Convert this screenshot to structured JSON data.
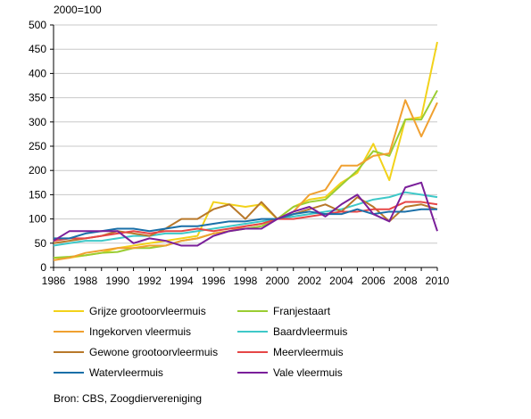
{
  "chart_data": {
    "type": "line",
    "title": "",
    "ylabel": "2000=100",
    "xlabel": "",
    "ylim": [
      0,
      500
    ],
    "yticks": [
      0,
      50,
      100,
      150,
      200,
      250,
      300,
      350,
      400,
      450,
      500
    ],
    "xlim": [
      1986,
      2010
    ],
    "xticks": [
      1986,
      1988,
      1990,
      1992,
      1994,
      1996,
      1998,
      2000,
      2002,
      2004,
      2006,
      2008,
      2010
    ],
    "x": [
      1986,
      1987,
      1988,
      1989,
      1990,
      1991,
      1992,
      1993,
      1994,
      1995,
      1996,
      1997,
      1998,
      1999,
      2000,
      2001,
      2002,
      2003,
      2004,
      2005,
      2006,
      2007,
      2008,
      2009,
      2010
    ],
    "grid": "horizontal",
    "legend_position": "bottom",
    "series": [
      {
        "name": "Grijze grootoorvleermuis",
        "color": "#f2d21a",
        "values": [
          20,
          20,
          25,
          30,
          40,
          45,
          50,
          55,
          60,
          65,
          135,
          130,
          125,
          130,
          100,
          125,
          140,
          145,
          175,
          195,
          255,
          180,
          305,
          310,
          465
        ]
      },
      {
        "name": "Franjestaart",
        "color": "#9acd32",
        "values": [
          20,
          22,
          25,
          30,
          32,
          40,
          40,
          45,
          55,
          60,
          70,
          75,
          80,
          85,
          100,
          125,
          135,
          140,
          170,
          200,
          240,
          230,
          305,
          305,
          365
        ]
      },
      {
        "name": "Ingekorven vleermuis",
        "color": "#f0a030",
        "values": [
          15,
          20,
          30,
          35,
          40,
          40,
          45,
          45,
          55,
          60,
          70,
          75,
          85,
          90,
          100,
          115,
          150,
          160,
          210,
          210,
          230,
          235,
          345,
          270,
          340
        ]
      },
      {
        "name": "Baardvleermuis",
        "color": "#3ec8c8",
        "values": [
          45,
          50,
          55,
          55,
          60,
          65,
          65,
          70,
          70,
          75,
          80,
          85,
          90,
          95,
          100,
          105,
          110,
          115,
          120,
          130,
          140,
          145,
          155,
          150,
          145
        ]
      },
      {
        "name": "Gewone grootoorvleermuis",
        "color": "#b8782a",
        "values": [
          50,
          55,
          60,
          65,
          75,
          70,
          65,
          80,
          100,
          100,
          120,
          130,
          100,
          135,
          100,
          110,
          120,
          130,
          115,
          145,
          125,
          95,
          125,
          130,
          120
        ]
      },
      {
        "name": "Meervleermuis",
        "color": "#e64646",
        "values": [
          55,
          60,
          60,
          65,
          70,
          75,
          70,
          75,
          75,
          80,
          75,
          80,
          85,
          90,
          100,
          100,
          105,
          110,
          115,
          115,
          120,
          120,
          135,
          135,
          130
        ]
      },
      {
        "name": "Watervleermuis",
        "color": "#1a6fa8",
        "values": [
          60,
          60,
          70,
          75,
          80,
          80,
          75,
          80,
          85,
          85,
          90,
          95,
          95,
          100,
          100,
          110,
          115,
          110,
          110,
          120,
          110,
          115,
          115,
          120,
          120
        ]
      },
      {
        "name": "Vale vleermuis",
        "color": "#7a1f9a",
        "values": [
          55,
          75,
          75,
          75,
          75,
          50,
          60,
          55,
          45,
          45,
          65,
          75,
          80,
          80,
          100,
          115,
          125,
          105,
          130,
          150,
          110,
          95,
          165,
          175,
          75
        ]
      }
    ]
  },
  "source_text": "Bron: CBS, Zoogdiervereniging"
}
